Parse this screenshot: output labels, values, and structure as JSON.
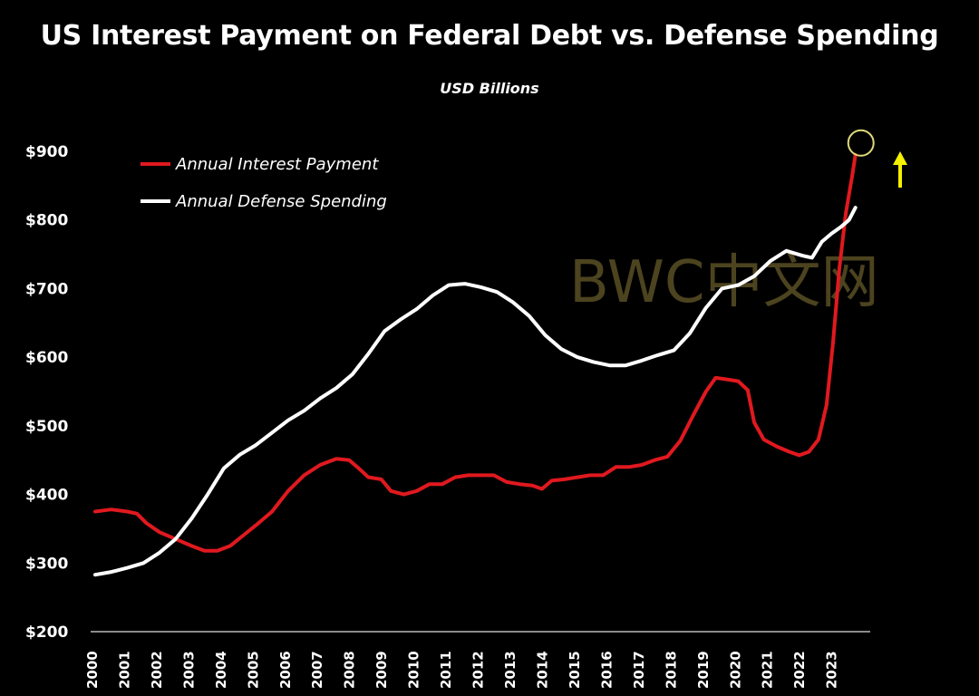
{
  "chart_data": {
    "type": "line",
    "title": "US Interest Payment on Federal Debt vs. Defense Spending",
    "subtitle": "USD Billions",
    "xlabel": "",
    "ylabel": "",
    "xlim": [
      2000,
      2024.25
    ],
    "ylim": [
      200,
      900
    ],
    "yticks": [
      200,
      300,
      400,
      500,
      600,
      700,
      800,
      900
    ],
    "ytick_labels": [
      "$200",
      "$300",
      "$400",
      "$500",
      "$600",
      "$700",
      "$800",
      "$900"
    ],
    "xtick_labels": [
      "2000",
      "2001",
      "2002",
      "2003",
      "2004",
      "2005",
      "2006",
      "2007",
      "2008",
      "2009",
      "2010",
      "2011",
      "2012",
      "2013",
      "2014",
      "2015",
      "2016",
      "2017",
      "2018",
      "2019",
      "2020",
      "2021",
      "2022",
      "2023"
    ],
    "grid": false,
    "legend_position": "top-left",
    "series": [
      {
        "name": "Annual Interest Payment",
        "color": "#e0191f",
        "points": [
          [
            2000.0,
            375
          ],
          [
            2000.5,
            378
          ],
          [
            2001.0,
            375
          ],
          [
            2001.3,
            372
          ],
          [
            2001.6,
            358
          ],
          [
            2002.0,
            345
          ],
          [
            2002.5,
            335
          ],
          [
            2003.0,
            325
          ],
          [
            2003.4,
            318
          ],
          [
            2003.8,
            318
          ],
          [
            2004.2,
            325
          ],
          [
            2004.6,
            340
          ],
          [
            2005.0,
            355
          ],
          [
            2005.5,
            375
          ],
          [
            2006.0,
            405
          ],
          [
            2006.5,
            428
          ],
          [
            2007.0,
            443
          ],
          [
            2007.5,
            452
          ],
          [
            2007.9,
            450
          ],
          [
            2008.2,
            438
          ],
          [
            2008.5,
            425
          ],
          [
            2008.9,
            422
          ],
          [
            2009.2,
            405
          ],
          [
            2009.6,
            400
          ],
          [
            2010.0,
            405
          ],
          [
            2010.4,
            415
          ],
          [
            2010.8,
            415
          ],
          [
            2011.2,
            425
          ],
          [
            2011.6,
            428
          ],
          [
            2012.0,
            428
          ],
          [
            2012.4,
            428
          ],
          [
            2012.8,
            418
          ],
          [
            2013.2,
            415
          ],
          [
            2013.6,
            413
          ],
          [
            2013.9,
            408
          ],
          [
            2014.2,
            420
          ],
          [
            2014.6,
            422
          ],
          [
            2015.0,
            425
          ],
          [
            2015.4,
            428
          ],
          [
            2015.8,
            428
          ],
          [
            2016.2,
            440
          ],
          [
            2016.6,
            440
          ],
          [
            2017.0,
            443
          ],
          [
            2017.4,
            450
          ],
          [
            2017.8,
            455
          ],
          [
            2018.2,
            478
          ],
          [
            2018.6,
            515
          ],
          [
            2019.0,
            550
          ],
          [
            2019.3,
            570
          ],
          [
            2019.6,
            568
          ],
          [
            2020.0,
            565
          ],
          [
            2020.3,
            552
          ],
          [
            2020.5,
            505
          ],
          [
            2020.8,
            480
          ],
          [
            2021.2,
            470
          ],
          [
            2021.6,
            462
          ],
          [
            2021.9,
            457
          ],
          [
            2022.2,
            462
          ],
          [
            2022.5,
            480
          ],
          [
            2022.75,
            530
          ],
          [
            2022.95,
            620
          ],
          [
            2023.15,
            730
          ],
          [
            2023.35,
            810
          ],
          [
            2023.55,
            865
          ],
          [
            2023.65,
            895
          ]
        ]
      },
      {
        "name": "Annual Defense Spending",
        "color": "#ffffff",
        "points": [
          [
            2000.0,
            283
          ],
          [
            2000.5,
            287
          ],
          [
            2001.0,
            293
          ],
          [
            2001.5,
            300
          ],
          [
            2002.0,
            315
          ],
          [
            2002.5,
            335
          ],
          [
            2003.0,
            365
          ],
          [
            2003.5,
            400
          ],
          [
            2004.0,
            438
          ],
          [
            2004.5,
            458
          ],
          [
            2005.0,
            472
          ],
          [
            2005.5,
            490
          ],
          [
            2006.0,
            508
          ],
          [
            2006.5,
            522
          ],
          [
            2007.0,
            540
          ],
          [
            2007.5,
            555
          ],
          [
            2008.0,
            575
          ],
          [
            2008.5,
            605
          ],
          [
            2009.0,
            638
          ],
          [
            2009.5,
            655
          ],
          [
            2010.0,
            670
          ],
          [
            2010.5,
            690
          ],
          [
            2011.0,
            705
          ],
          [
            2011.5,
            707
          ],
          [
            2012.0,
            702
          ],
          [
            2012.5,
            695
          ],
          [
            2013.0,
            680
          ],
          [
            2013.5,
            660
          ],
          [
            2014.0,
            632
          ],
          [
            2014.5,
            612
          ],
          [
            2015.0,
            600
          ],
          [
            2015.5,
            593
          ],
          [
            2016.0,
            588
          ],
          [
            2016.5,
            588
          ],
          [
            2017.0,
            595
          ],
          [
            2017.5,
            603
          ],
          [
            2018.0,
            610
          ],
          [
            2018.5,
            635
          ],
          [
            2019.0,
            672
          ],
          [
            2019.5,
            700
          ],
          [
            2020.0,
            705
          ],
          [
            2020.5,
            718
          ],
          [
            2021.0,
            740
          ],
          [
            2021.5,
            755
          ],
          [
            2022.0,
            748
          ],
          [
            2022.3,
            745
          ],
          [
            2022.6,
            768
          ],
          [
            2022.9,
            780
          ],
          [
            2023.2,
            790
          ],
          [
            2023.45,
            800
          ],
          [
            2023.65,
            818
          ]
        ]
      }
    ],
    "annotations": {
      "circle_highlight": {
        "x": 2023.65,
        "y": 895,
        "color": "#e0d97a"
      },
      "up_arrow": {
        "color": "#f5f000",
        "direction": "up"
      },
      "watermark": "BWC中文网"
    }
  }
}
